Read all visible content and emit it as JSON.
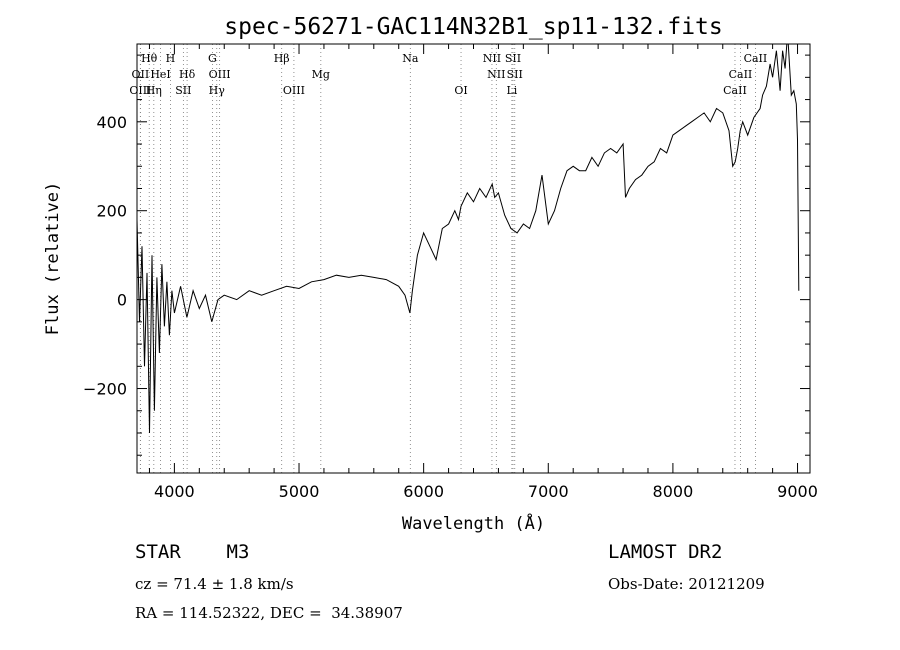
{
  "chart_data": {
    "type": "line",
    "title": "spec-56271-GAC114N32B1_sp11-132.fits",
    "xlabel": "Wavelength (Å)",
    "ylabel": "Flux (relative)",
    "xlim": [
      3700,
      9100
    ],
    "ylim": [
      -390,
      575
    ],
    "x_ticks": [
      4000,
      5000,
      6000,
      7000,
      8000,
      9000
    ],
    "y_ticks": [
      -200,
      0,
      200,
      400
    ],
    "grid": false,
    "series": [
      {
        "x": [
          3700,
          3720,
          3740,
          3760,
          3780,
          3800,
          3820,
          3840,
          3860,
          3880,
          3900,
          3920,
          3940,
          3960,
          3980,
          4000,
          4050,
          4100,
          4150,
          4200,
          4250,
          4300,
          4350,
          4400,
          4500,
          4600,
          4700,
          4800,
          4900,
          5000,
          5100,
          5200,
          5300,
          5400,
          5500,
          5600,
          5700,
          5800,
          5850,
          5890,
          5910,
          5950,
          6000,
          6050,
          6100,
          6150,
          6200,
          6250,
          6280,
          6300,
          6350,
          6400,
          6450,
          6500,
          6550,
          6570,
          6600,
          6650,
          6700,
          6750,
          6800,
          6850,
          6900,
          6950,
          7000,
          7050,
          7100,
          7150,
          7200,
          7250,
          7300,
          7350,
          7400,
          7450,
          7500,
          7550,
          7600,
          7620,
          7650,
          7700,
          7750,
          7800,
          7850,
          7900,
          7950,
          8000,
          8050,
          8100,
          8150,
          8200,
          8250,
          8300,
          8350,
          8400,
          8450,
          8480,
          8500,
          8520,
          8540,
          8560,
          8600,
          8650,
          8700,
          8720,
          8750,
          8780,
          8800,
          8830,
          8860,
          8880,
          8900,
          8920,
          8950,
          8970,
          8990,
          9000,
          9010
        ],
        "y": [
          180,
          -50,
          120,
          -150,
          60,
          -300,
          100,
          -250,
          50,
          -120,
          80,
          -60,
          40,
          -80,
          20,
          -30,
          30,
          -40,
          20,
          -20,
          10,
          -50,
          0,
          10,
          0,
          20,
          10,
          20,
          30,
          25,
          40,
          45,
          55,
          50,
          55,
          50,
          45,
          30,
          10,
          -30,
          20,
          100,
          150,
          120,
          90,
          160,
          170,
          200,
          180,
          210,
          240,
          220,
          250,
          230,
          260,
          230,
          240,
          190,
          160,
          150,
          170,
          160,
          200,
          280,
          170,
          200,
          250,
          290,
          300,
          290,
          290,
          320,
          300,
          330,
          340,
          330,
          350,
          230,
          250,
          270,
          280,
          300,
          310,
          340,
          330,
          370,
          380,
          390,
          400,
          410,
          420,
          400,
          430,
          420,
          380,
          300,
          310,
          340,
          380,
          400,
          370,
          410,
          430,
          460,
          480,
          530,
          500,
          560,
          470,
          560,
          520,
          600,
          460,
          470,
          440,
          360,
          20
        ]
      }
    ],
    "lines": [
      {
        "label": "Hθ",
        "x": 3798,
        "row": 0
      },
      {
        "label": "H",
        "x": 3968,
        "row": 0
      },
      {
        "label": "G",
        "x": 4305,
        "row": 0
      },
      {
        "label": "Hβ",
        "x": 4861,
        "row": 0
      },
      {
        "label": "Na",
        "x": 5893,
        "row": 0
      },
      {
        "label": "NII",
        "x": 6548,
        "row": 0
      },
      {
        "label": "SII",
        "x": 6717,
        "row": 0
      },
      {
        "label": "CaII",
        "x": 8662,
        "row": 0
      },
      {
        "label": "OII",
        "x": 3727,
        "row": 1
      },
      {
        "label": "HeI",
        "x": 3889,
        "row": 1
      },
      {
        "label": "Hδ",
        "x": 4102,
        "row": 1
      },
      {
        "label": "OIII",
        "x": 4363,
        "row": 1
      },
      {
        "label": "Mg",
        "x": 5175,
        "row": 1
      },
      {
        "label": "NII",
        "x": 6583,
        "row": 1
      },
      {
        "label": "SII",
        "x": 6731,
        "row": 1
      },
      {
        "label": "CaII",
        "x": 8542,
        "row": 1
      },
      {
        "label": "OIII",
        "x": 3727,
        "row": 2
      },
      {
        "label": "Hη",
        "x": 3835,
        "row": 2
      },
      {
        "label": "SII",
        "x": 4072,
        "row": 2
      },
      {
        "label": "Hγ",
        "x": 4340,
        "row": 2
      },
      {
        "label": "OIII",
        "x": 4959,
        "row": 2
      },
      {
        "label": "OI",
        "x": 6300,
        "row": 2
      },
      {
        "label": "Li",
        "x": 6708,
        "row": 2
      },
      {
        "label": "CaII",
        "x": 8498,
        "row": 2
      }
    ]
  },
  "info": {
    "class_line": "STAR    M3",
    "survey": "LAMOST DR2",
    "cz": "cz = 71.4 ± 1.8 km/s",
    "obs_date": "Obs-Date: 20121209",
    "radec": "RA = 114.52322, DEC =  34.38907"
  }
}
